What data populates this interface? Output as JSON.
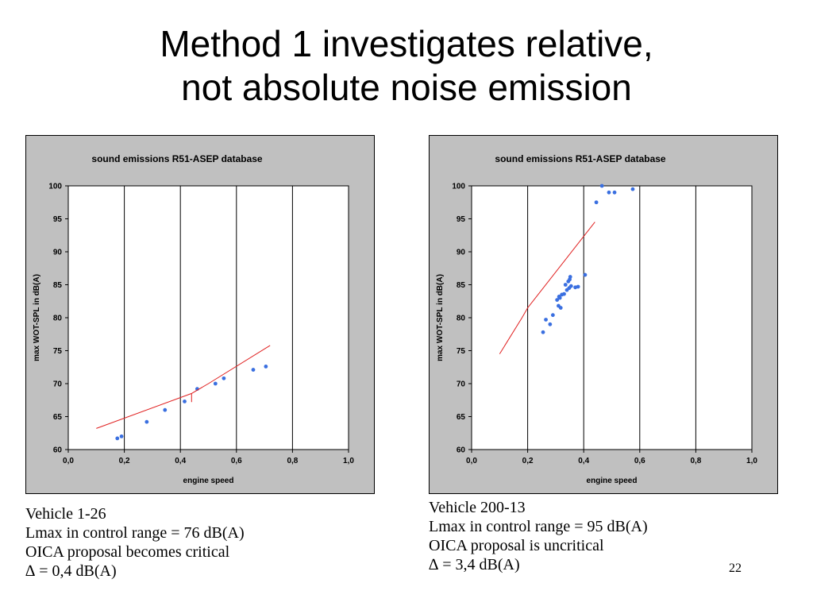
{
  "slide": {
    "title_line1": "Method 1 investigates relative,",
    "title_line2": "not absolute noise emission",
    "page_number": "22"
  },
  "captions": {
    "left": [
      "Vehicle 1-26",
      "Lmax in control range = 76 dB(A)",
      "OICA proposal becomes critical",
      "∆ = 0,4 dB(A)"
    ],
    "right": [
      "Vehicle 200-13",
      "Lmax in control range = 95 dB(A)",
      "OICA proposal is uncritical",
      "∆ = 3,4 dB(A)"
    ]
  },
  "colors": {
    "frame_bg": "#c0c0c0",
    "plot_bg": "#ffffff",
    "points": "#3a6fe0",
    "line": "#e02020",
    "grid": "#000000"
  },
  "chart_data": [
    {
      "type": "scatter",
      "title": "sound emissions R51-ASEP database",
      "xlabel": "engine speed",
      "ylabel": "max WOT-SPL in dB(A)",
      "xlim": [
        0,
        1
      ],
      "ylim": [
        60,
        100
      ],
      "xticks": [
        "0,0",
        "0,2",
        "0,4",
        "0,6",
        "0,8",
        "1,0"
      ],
      "yticks": [
        "60",
        "65",
        "70",
        "75",
        "80",
        "85",
        "90",
        "95",
        "100"
      ],
      "grid": "vertical",
      "series": [
        {
          "type": "scatter",
          "points": [
            [
              0.175,
              61.7
            ],
            [
              0.19,
              62.0
            ],
            [
              0.28,
              64.2
            ],
            [
              0.345,
              66.0
            ],
            [
              0.415,
              67.3
            ],
            [
              0.46,
              69.2
            ],
            [
              0.525,
              70.0
            ],
            [
              0.555,
              70.8
            ],
            [
              0.66,
              72.1
            ],
            [
              0.705,
              72.6
            ]
          ]
        },
        {
          "type": "line",
          "points": [
            [
              0.1,
              63.2
            ],
            [
              0.44,
              68.5
            ],
            [
              0.44,
              67.2
            ],
            [
              0.44,
              68.5
            ],
            [
              0.5,
              70.0
            ],
            [
              0.72,
              75.8
            ]
          ]
        }
      ]
    },
    {
      "type": "scatter",
      "title": "sound emissions R51-ASEP database",
      "xlabel": "engine speed",
      "ylabel": "max WOT-SPL in dB(A)",
      "xlim": [
        0,
        1
      ],
      "ylim": [
        60,
        100
      ],
      "xticks": [
        "0,0",
        "0,2",
        "0,4",
        "0,6",
        "0,8",
        "1,0"
      ],
      "yticks": [
        "60",
        "65",
        "70",
        "75",
        "80",
        "85",
        "90",
        "95",
        "100"
      ],
      "grid": "vertical",
      "series": [
        {
          "type": "scatter",
          "points": [
            [
              0.255,
              77.8
            ],
            [
              0.265,
              79.7
            ],
            [
              0.28,
              79.0
            ],
            [
              0.29,
              80.4
            ],
            [
              0.305,
              82.7
            ],
            [
              0.31,
              81.8
            ],
            [
              0.312,
              83.2
            ],
            [
              0.315,
              83.0
            ],
            [
              0.318,
              81.5
            ],
            [
              0.322,
              83.5
            ],
            [
              0.33,
              83.6
            ],
            [
              0.335,
              85.0
            ],
            [
              0.34,
              84.2
            ],
            [
              0.345,
              85.5
            ],
            [
              0.348,
              84.5
            ],
            [
              0.35,
              85.8
            ],
            [
              0.352,
              86.2
            ],
            [
              0.355,
              84.8
            ],
            [
              0.37,
              84.6
            ],
            [
              0.38,
              84.7
            ],
            [
              0.405,
              86.5
            ],
            [
              0.445,
              97.5
            ],
            [
              0.465,
              100.0
            ],
            [
              0.49,
              99.0
            ],
            [
              0.51,
              99.0
            ],
            [
              0.575,
              99.5
            ]
          ]
        },
        {
          "type": "line",
          "points": [
            [
              0.1,
              74.5
            ],
            [
              0.18,
              80.0
            ],
            [
              0.2,
              81.5
            ],
            [
              0.44,
              94.5
            ]
          ]
        }
      ]
    }
  ]
}
